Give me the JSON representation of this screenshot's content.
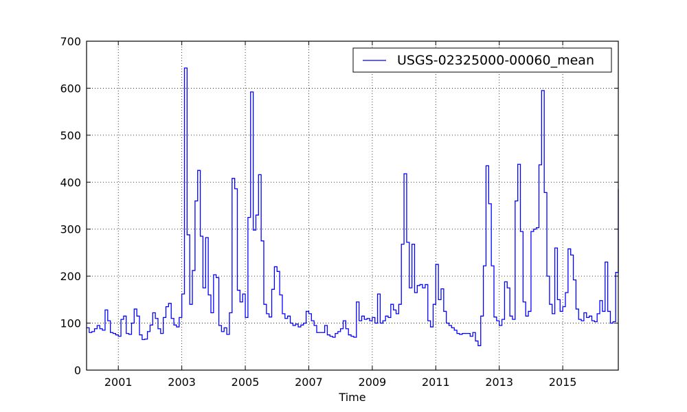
{
  "chart_data": {
    "type": "line",
    "step": true,
    "xlabel": "Time",
    "ylabel": "",
    "title": "",
    "xlim": [
      2000.0,
      2016.75
    ],
    "ylim": [
      0,
      700
    ],
    "xticks": [
      2001,
      2003,
      2005,
      2007,
      2009,
      2011,
      2013,
      2015
    ],
    "xtick_labels": [
      "2001",
      "2003",
      "2005",
      "2007",
      "2009",
      "2011",
      "2013",
      "2015"
    ],
    "yticks": [
      0,
      100,
      200,
      300,
      400,
      500,
      600,
      700
    ],
    "ytick_labels": [
      "0",
      "100",
      "200",
      "300",
      "400",
      "500",
      "600",
      "700"
    ],
    "grid": true,
    "legend_position": "top-right",
    "series": [
      {
        "name": "USGS-02325000-00060_mean",
        "color": "#0000ff",
        "x_start": 2000.0,
        "x_step": 0.08333333,
        "values": [
          90,
          80,
          82,
          88,
          95,
          88,
          85,
          128,
          105,
          80,
          78,
          75,
          72,
          108,
          115,
          78,
          76,
          100,
          130,
          115,
          75,
          65,
          66,
          82,
          96,
          122,
          110,
          88,
          78,
          112,
          135,
          142,
          110,
          96,
          92,
          112,
          162,
          643,
          288,
          140,
          212,
          360,
          425,
          285,
          175,
          282,
          160,
          122,
          203,
          197,
          95,
          82,
          90,
          76,
          122,
          408,
          386,
          170,
          145,
          162,
          112,
          325,
          592,
          298,
          330,
          416,
          275,
          140,
          120,
          113,
          172,
          220,
          210,
          160,
          120,
          110,
          115,
          100,
          95,
          98,
          92,
          96,
          100,
          125,
          120,
          105,
          95,
          80,
          80,
          80,
          95,
          75,
          72,
          70,
          78,
          82,
          88,
          105,
          88,
          75,
          72,
          70,
          145,
          105,
          115,
          108,
          110,
          105,
          112,
          100,
          162,
          100,
          105,
          115,
          112,
          140,
          128,
          120,
          140,
          268,
          418,
          272,
          175,
          268,
          165,
          180,
          182,
          175,
          182,
          105,
          92,
          140,
          225,
          150,
          173,
          125,
          100,
          95,
          90,
          85,
          78,
          76,
          78,
          78,
          78,
          72,
          80,
          62,
          52,
          115,
          222,
          435,
          354,
          222,
          113,
          105,
          95,
          108,
          188,
          175,
          115,
          108,
          360,
          438,
          295,
          145,
          115,
          125,
          295,
          300,
          303,
          437,
          595,
          378,
          200,
          140,
          120,
          260,
          150,
          125,
          135,
          165,
          258,
          245,
          192,
          130,
          108,
          105,
          122,
          112,
          115,
          105,
          103,
          120,
          148,
          125,
          230,
          125,
          100,
          103,
          208,
          385
        ]
      }
    ]
  }
}
